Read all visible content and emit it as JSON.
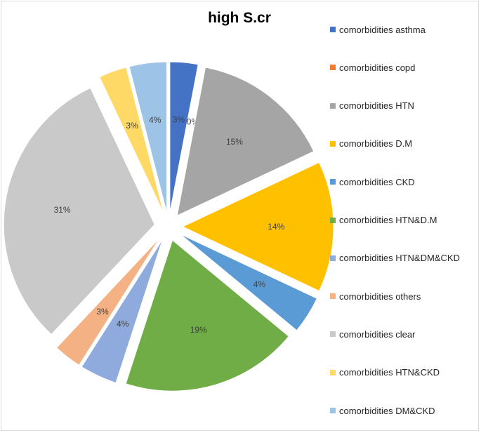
{
  "chart_data": {
    "type": "pie",
    "title": "high S.cr",
    "slices": [
      {
        "label": "comorbidities asthma",
        "value": 3,
        "display": "3%",
        "color": "#4472c4"
      },
      {
        "label": "comorbidities copd",
        "value": 0,
        "display": "0%",
        "color": "#ed7d31"
      },
      {
        "label": "comorbidities HTN",
        "value": 15,
        "display": "15%",
        "color": "#a5a5a5"
      },
      {
        "label": "comorbidities D.M",
        "value": 14,
        "display": "14%",
        "color": "#ffc000"
      },
      {
        "label": "comorbidities CKD",
        "value": 4,
        "display": "4%",
        "color": "#5b9bd5"
      },
      {
        "label": "comorbidities HTN&D.M",
        "value": 19,
        "display": "19%",
        "color": "#70ad47"
      },
      {
        "label": "comorbidities HTN&DM&CKD",
        "value": 4,
        "display": "4%",
        "color": "#8faadc"
      },
      {
        "label": "comorbidities others",
        "value": 3,
        "display": "3%",
        "color": "#f4b183"
      },
      {
        "label": "comorbidities clear",
        "value": 31,
        "display": "31%",
        "color": "#c9c9c9"
      },
      {
        "label": "comorbidities HTN&CKD",
        "value": 3,
        "display": "3%",
        "color": "#ffd966"
      },
      {
        "label": "comorbidities DM&CKD",
        "value": 4,
        "display": "4%",
        "color": "#9dc3e6"
      }
    ],
    "legend_position": "right",
    "exploded": true
  }
}
